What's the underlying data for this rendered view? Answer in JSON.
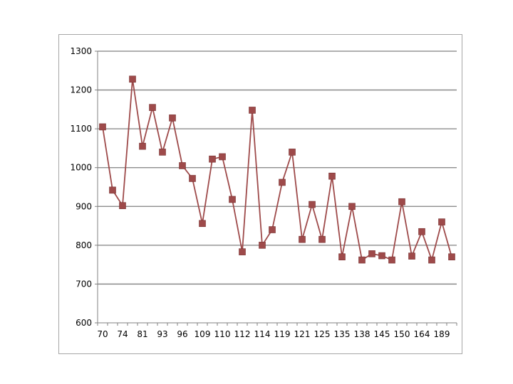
{
  "chart_data": {
    "type": "line",
    "title": "",
    "xlabel": "",
    "ylabel": "",
    "ylim": [
      600,
      1300
    ],
    "y_ticks": [
      600,
      700,
      800,
      900,
      1000,
      1100,
      1200,
      1300
    ],
    "grid": true,
    "legend": "none",
    "x_tick_labels": [
      "70",
      "74",
      "81",
      "93",
      "96",
      "109",
      "110",
      "112",
      "114",
      "119",
      "121",
      "125",
      "135",
      "138",
      "145",
      "150",
      "164",
      "189"
    ],
    "series": [
      {
        "color": "#9e4a4a",
        "marker": "square",
        "values": [
          1105,
          942,
          902,
          1228,
          1055,
          1155,
          1040,
          1128,
          1005,
          972,
          856,
          1022,
          1028,
          918,
          783,
          1148,
          800,
          840,
          962,
          1040,
          815,
          905,
          815,
          978,
          770,
          900,
          762,
          778,
          773,
          762,
          912,
          772,
          835,
          762,
          860,
          770
        ]
      }
    ]
  }
}
